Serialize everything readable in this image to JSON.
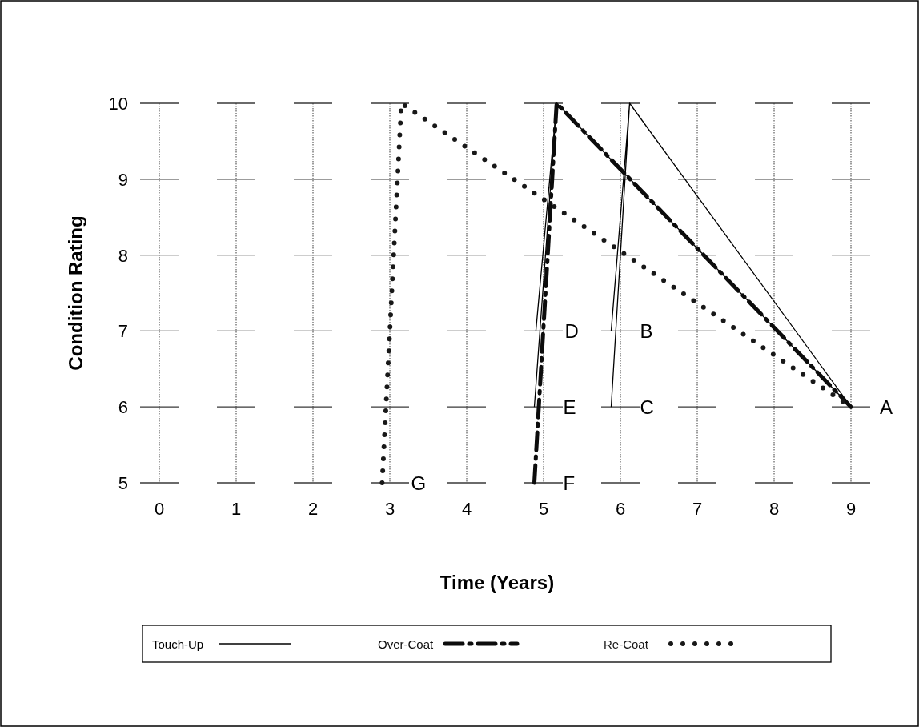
{
  "chart_data": {
    "type": "line",
    "xlabel": "Time (Years)",
    "ylabel": "Condition Rating",
    "xlim": [
      0,
      9
    ],
    "xticks": [
      0,
      1,
      2,
      3,
      4,
      5,
      6,
      7,
      8,
      9
    ],
    "ylim": [
      5,
      10
    ],
    "yticks": [
      5,
      6,
      7,
      8,
      9,
      10
    ],
    "grid": true,
    "legend": "bottom",
    "marker": "none",
    "series": [
      {
        "name": "Touch-Up",
        "color": "#000000",
        "line_style": "solid",
        "x": [
          5.88,
          6.12,
          9,
          null,
          5.88,
          6.12,
          null,
          4.9,
          5.17,
          9,
          null,
          4.88,
          5.17
        ],
        "values": [
          7,
          10,
          6,
          null,
          6,
          10,
          null,
          7,
          10,
          6,
          null,
          6,
          10
        ]
      },
      {
        "name": "Over-Coat",
        "color": "#0c0c0c",
        "line_style": "dashed",
        "x": [
          4.88,
          5.17,
          9
        ],
        "values": [
          5,
          10,
          6
        ]
      },
      {
        "name": "Re-Coat",
        "color": "#181818",
        "line_style": "dotted",
        "x": [
          2.9,
          3.15,
          9
        ],
        "values": [
          5,
          10,
          6
        ]
      }
    ],
    "annotations": [
      {
        "text": "A",
        "x": 9,
        "y": 6
      },
      {
        "text": "B",
        "x": 5.88,
        "y": 7
      },
      {
        "text": "C",
        "x": 5.88,
        "y": 6
      },
      {
        "text": "D",
        "x": 4.9,
        "y": 7
      },
      {
        "text": "E",
        "x": 4.88,
        "y": 6
      },
      {
        "text": "F",
        "x": 4.88,
        "y": 5
      },
      {
        "text": "G",
        "x": 2.9,
        "y": 5
      }
    ]
  }
}
